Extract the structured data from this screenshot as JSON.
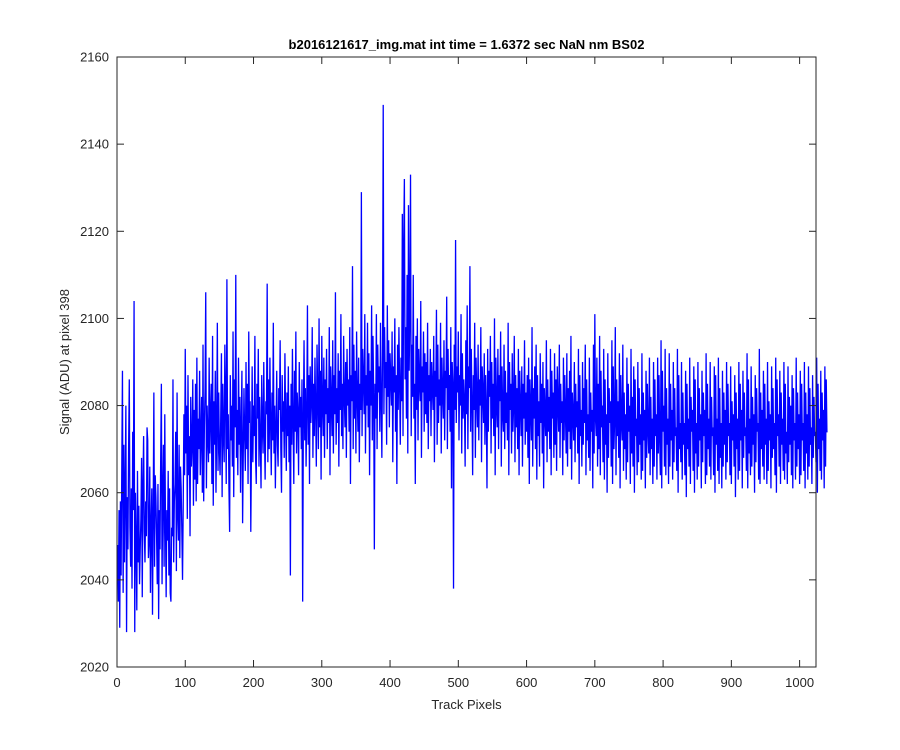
{
  "chart_data": {
    "type": "line",
    "title": "b2016121617_img.mat int time = 1.6372 sec  NaN nm BS02",
    "xlabel": "Track Pixels",
    "ylabel": "Signal (ADU) at pixel 398",
    "xlim": [
      0,
      1024
    ],
    "ylim": [
      2020,
      2160
    ],
    "xticks": [
      0,
      100,
      200,
      300,
      400,
      500,
      600,
      700,
      800,
      900,
      1000
    ],
    "yticks": [
      2020,
      2040,
      2060,
      2080,
      2100,
      2120,
      2140,
      2160
    ],
    "grid": false,
    "line_color": "#0000ff",
    "series": [
      {
        "name": "",
        "x_start": 1,
        "x_step": 1,
        "values": [
          2048,
          2035,
          2056,
          2029,
          2058,
          2041,
          2066,
          2088,
          2037,
          2071,
          2044,
          2062,
          2080,
          2028,
          2059,
          2047,
          2070,
          2086,
          2052,
          2043,
          2061,
          2038,
          2074,
          2056,
          2104,
          2028,
          2060,
          2049,
          2033,
          2065,
          2044,
          2057,
          2039,
          2047,
          2054,
          2068,
          2036,
          2062,
          2073,
          2051,
          2044,
          2058,
          2050,
          2075,
          2072,
          2045,
          2049,
          2066,
          2037,
          2052,
          2061,
          2032,
          2055,
          2083,
          2043,
          2064,
          2059,
          2050,
          2039,
          2062,
          2031,
          2056,
          2047,
          2068,
          2085,
          2039,
          2060,
          2071,
          2043,
          2078,
          2053,
          2036,
          2056,
          2049,
          2065,
          2041,
          2061,
          2037,
          2035,
          2052,
          2050,
          2086,
          2044,
          2058,
          2062,
          2074,
          2042,
          2083,
          2055,
          2049,
          2071,
          2045,
          2066,
          2061,
          2051,
          2040,
          2057,
          2078,
          2064,
          2093,
          2069,
          2080,
          2054,
          2087,
          2064,
          2073,
          2050,
          2082,
          2066,
          2071,
          2086,
          2057,
          2079,
          2063,
          2085,
          2058,
          2091,
          2062,
          2077,
          2070,
          2088,
          2064,
          2073,
          2082,
          2060,
          2094,
          2058,
          2075,
          2084,
          2106,
          2061,
          2080,
          2073,
          2067,
          2091,
          2069,
          2078,
          2085,
          2062,
          2096,
          2057,
          2081,
          2071,
          2088,
          2060,
          2075,
          2099,
          2065,
          2083,
          2070,
          2064,
          2078,
          2092,
          2059,
          2085,
          2073,
          2067,
          2094,
          2082,
          2062,
          2109,
          2070,
          2078,
          2061,
          2051,
          2087,
          2072,
          2080,
          2066,
          2097,
          2059,
          2086,
          2075,
          2110,
          2068,
          2079,
          2064,
          2091,
          2071,
          2082,
          2060,
          2076,
          2088,
          2053,
          2069,
          2084,
          2073,
          2065,
          2090,
          2070,
          2085,
          2062,
          2097,
          2076,
          2081,
          2051,
          2070,
          2089,
          2067,
          2080,
          2073,
          2096,
          2068,
          2062,
          2085,
          2077,
          2093,
          2066,
          2082,
          2072,
          2061,
          2087,
          2075,
          2069,
          2090,
          2074,
          2063,
          2081,
          2078,
          2108,
          2067,
          2086,
          2070,
          2091,
          2076,
          2064,
          2083,
          2072,
          2099,
          2069,
          2080,
          2061,
          2075,
          2088,
          2071,
          2066,
          2084,
          2079,
          2095,
          2070,
          2060,
          2087,
          2074,
          2081,
          2068,
          2092,
          2077,
          2065,
          2083,
          2073,
          2089,
          2067,
          2080,
          2041,
          2085,
          2071,
          2093,
          2076,
          2062,
          2088,
          2074,
          2097,
          2069,
          2083,
          2078,
          2064,
          2090,
          2075,
          2082,
          2070,
          2086,
          2035,
          2077,
          2095,
          2072,
          2084,
          2066,
          2079,
          2103,
          2071,
          2087,
          2062,
          2089,
          2076,
          2081,
          2098,
          2068,
          2085,
          2073,
          2091,
          2079,
          2066,
          2094,
          2082,
          2070,
          2100,
          2075,
          2088,
          2063,
          2096,
          2080,
          2073,
          2091,
          2068,
          2086,
          2078,
          2093,
          2070,
          2084,
          2076,
          2098,
          2064,
          2089,
          2081,
          2073,
          2095,
          2069,
          2087,
          2078,
          2106,
          2071,
          2084,
          2076,
          2092,
          2066,
          2088,
          2079,
          2101,
          2073,
          2085,
          2070,
          2096,
          2082,
          2075,
          2090,
          2068,
          2093,
          2080,
          2086,
          2074,
          2098,
          2062,
          2087,
          2081,
          2112,
          2070,
          2094,
          2077,
          2088,
          2069,
          2097,
          2082,
          2074,
          2091,
          2067,
          2085,
          2079,
          2129,
          2073,
          2093,
          2086,
          2078,
          2101,
          2069,
          2087,
          2080,
          2099,
          2075,
          2092,
          2064,
          2088,
          2080,
          2103,
          2072,
          2096,
          2083,
          2047,
          2085,
          2077,
          2101,
          2070,
          2094,
          2083,
          2089,
          2074,
          2099,
          2081,
          2068,
          2093,
          2149,
          2078,
          2098,
          2084,
          2090,
          2071,
          2103,
          2082,
          2095,
          2075,
          2092,
          2086,
          2080,
          2097,
          2067,
          2089,
          2083,
          2100,
          2074,
          2087,
          2062,
          2094,
          2079,
          2098,
          2085,
          2071,
          2091,
          2081,
          2124,
          2073,
          2118,
          2132,
          2086,
          2098,
          2077,
          2110,
          2069,
          2126,
          2088,
          2101,
          2133,
          2073,
          2094,
          2082,
          2110,
          2077,
          2085,
          2062,
          2096,
          2079,
          2100,
          2072,
          2093,
          2085,
          2081,
          2104,
          2068,
          2089,
          2083,
          2097,
          2074,
          2092,
          2078,
          2090,
          2076,
          2099,
          2070,
          2087,
          2081,
          2093,
          2073,
          2090,
          2084,
          2079,
          2096,
          2067,
          2088,
          2082,
          2102,
          2071,
          2094,
          2076,
          2086,
          2080,
          2099,
          2069,
          2091,
          2083,
          2077,
          2095,
          2072,
          2088,
          2084,
          2105,
          2070,
          2093,
          2079,
          2087,
          2074,
          2098,
          2061,
          2090,
          2085,
          2038,
          2094,
          2079,
          2118,
          2076,
          2089,
          2083,
          2097,
          2072,
          2087,
          2080,
          2101,
          2069,
          2092,
          2077,
          2086,
          2081,
          2066,
          2095,
          2078,
          2103,
          2070,
          2089,
          2084,
          2112,
          2074,
          2093,
          2081,
          2064,
          2087,
          2079,
          2099,
          2068,
          2091,
          2082,
          2075,
          2094,
          2072,
          2086,
          2080,
          2098,
          2067,
          2089,
          2083,
          2076,
          2092,
          2071,
          2087,
          2079,
          2061,
          2093,
          2074,
          2088,
          2082,
          2096,
          2069,
          2090,
          2077,
          2085,
          2073,
          2100,
          2064,
          2091,
          2080,
          2075,
          2093,
          2070,
          2087,
          2081,
          2097,
          2066,
          2089,
          2078,
          2074,
          2094,
          2070,
          2088,
          2076,
          2083,
          2072,
          2099,
          2064,
          2090,
          2079,
          2085,
          2069,
          2092,
          2074,
          2080,
          2096,
          2067,
          2087,
          2075,
          2084,
          2070,
          2093,
          2064,
          2088,
          2080,
          2073,
          2089,
          2066,
          2085,
          2077,
          2095,
          2071,
          2083,
          2074,
          2087,
          2068,
          2091,
          2062,
          2086,
          2079,
          2072,
          2098,
          2066,
          2084,
          2077,
          2089,
          2070,
          2094,
          2063,
          2087,
          2073,
          2081,
          2066,
          2092,
          2076,
          2085,
          2069,
          2090,
          2061,
          2084,
          2078,
          2073,
          2095,
          2067,
          2086,
          2074,
          2082,
          2070,
          2093,
          2064,
          2088,
          2077,
          2083,
          2068,
          2092,
          2071,
          2086,
          2065,
          2089,
          2080,
          2074,
          2094,
          2068,
          2085,
          2076,
          2081,
          2064,
          2091,
          2072,
          2087,
          2078,
          2069,
          2092,
          2066,
          2084,
          2074,
          2088,
          2070,
          2096,
          2063,
          2083,
          2078,
          2072,
          2090,
          2067,
          2085,
          2075,
          2081,
          2069,
          2093,
          2062,
          2087,
          2073,
          2079,
          2066,
          2090,
          2071,
          2084,
          2076,
          2094,
          2064,
          2086,
          2072,
          2078,
          2068,
          2091,
          2065,
          2083,
          2074,
          2079,
          2061,
          2094,
          2069,
          2101,
          2077,
          2073,
          2091,
          2066,
          2085,
          2070,
          2096,
          2064,
          2088,
          2075,
          2080,
          2067,
          2093,
          2063,
          2086,
          2071,
          2078,
          2060,
          2092,
          2068,
          2084,
          2076,
          2081,
          2066,
          2095,
          2062,
          2089,
          2070,
          2077,
          2098,
          2064,
          2086,
          2073,
          2081,
          2068,
          2092,
          2061,
          2087,
          2076,
          2072,
          2094,
          2065,
          2083,
          2070,
          2078,
          2063,
          2091,
          2067,
          2085,
          2074,
          2080,
          2062,
          2093,
          2069,
          2082,
          2066,
          2089,
          2060,
          2086,
          2073,
          2077,
          2064,
          2090,
          2067,
          2084,
          2071,
          2078,
          2063,
          2092,
          2065,
          2083,
          2072,
          2079,
          2061,
          2088,
          2068,
          2085,
          2074,
          2069,
          2091,
          2064,
          2082,
          2070,
          2077,
          2062,
          2090,
          2066,
          2086,
          2073,
          2078,
          2063,
          2091,
          2069,
          2087,
          2072,
          2064,
          2095,
          2061,
          2088,
          2074,
          2080,
          2066,
          2093,
          2064,
          2084,
          2071,
          2077,
          2062,
          2092,
          2066,
          2085,
          2072,
          2079,
          2063,
          2090,
          2067,
          2084,
          2073,
          2075,
          2065,
          2093,
          2060,
          2087,
          2070,
          2076,
          2067,
          2090,
          2063,
          2083,
          2071,
          2076,
          2064,
          2088,
          2059,
          2085,
          2070,
          2077,
          2066,
          2091,
          2062,
          2082,
          2074,
          2079,
          2065,
          2089,
          2060,
          2086,
          2069,
          2076,
          2063,
          2090,
          2066,
          2084,
          2072,
          2078,
          2061,
          2088,
          2067,
          2083,
          2073,
          2079,
          2062,
          2092,
          2064,
          2085,
          2070,
          2077,
          2066,
          2090,
          2063,
          2082,
          2073,
          2075,
          2064,
          2089,
          2060,
          2087,
          2071,
          2077,
          2065,
          2091,
          2062,
          2084,
          2068,
          2076,
          2061,
          2088,
          2066,
          2083,
          2071,
          2079,
          2063,
          2090,
          2067,
          2085,
          2073,
          2076,
          2064,
          2089,
          2062,
          2081,
          2072,
          2078,
          2066,
          2087,
          2059,
          2083,
          2070,
          2077,
          2063,
          2090,
          2065,
          2085,
          2072,
          2079,
          2061,
          2088,
          2068,
          2083,
          2073,
          2075,
          2065,
          2092,
          2061,
          2086,
          2069,
          2077,
          2064,
          2089,
          2066,
          2082,
          2071,
          2078,
          2060,
          2087,
          2067,
          2084,
          2074,
          2076,
          2063,
          2093,
          2062,
          2083,
          2070,
          2079,
          2066,
          2088,
          2063,
          2085,
          2071,
          2077,
          2062,
          2090,
          2065,
          2081,
          2072,
          2078,
          2061,
          2089,
          2068,
          2084,
          2070,
          2076,
          2064,
          2091,
          2060,
          2086,
          2073,
          2078,
          2066,
          2088,
          2062,
          2083,
          2071,
          2077,
          2065,
          2090,
          2063,
          2085,
          2069,
          2074,
          2062,
          2089,
          2067,
          2082,
          2071,
          2080,
          2064,
          2087,
          2061,
          2084,
          2072,
          2076,
          2063,
          2091,
          2066,
          2083,
          2070,
          2078,
          2062,
          2088,
          2064,
          2085,
          2072,
          2076,
          2065,
          2090,
          2061,
          2083,
          2069,
          2078,
          2063,
          2089,
          2066,
          2084,
          2071,
          2075,
          2062,
          2087,
          2068,
          2082,
          2073,
          2074,
          2067,
          2091,
          2060,
          2085,
          2070,
          2077,
          2065,
          2088,
          2063,
          2083,
          2072,
          2079,
          2061,
          2089,
          2066,
          2086,
          2074,
          2074
        ]
      }
    ],
    "series_override": []
  }
}
